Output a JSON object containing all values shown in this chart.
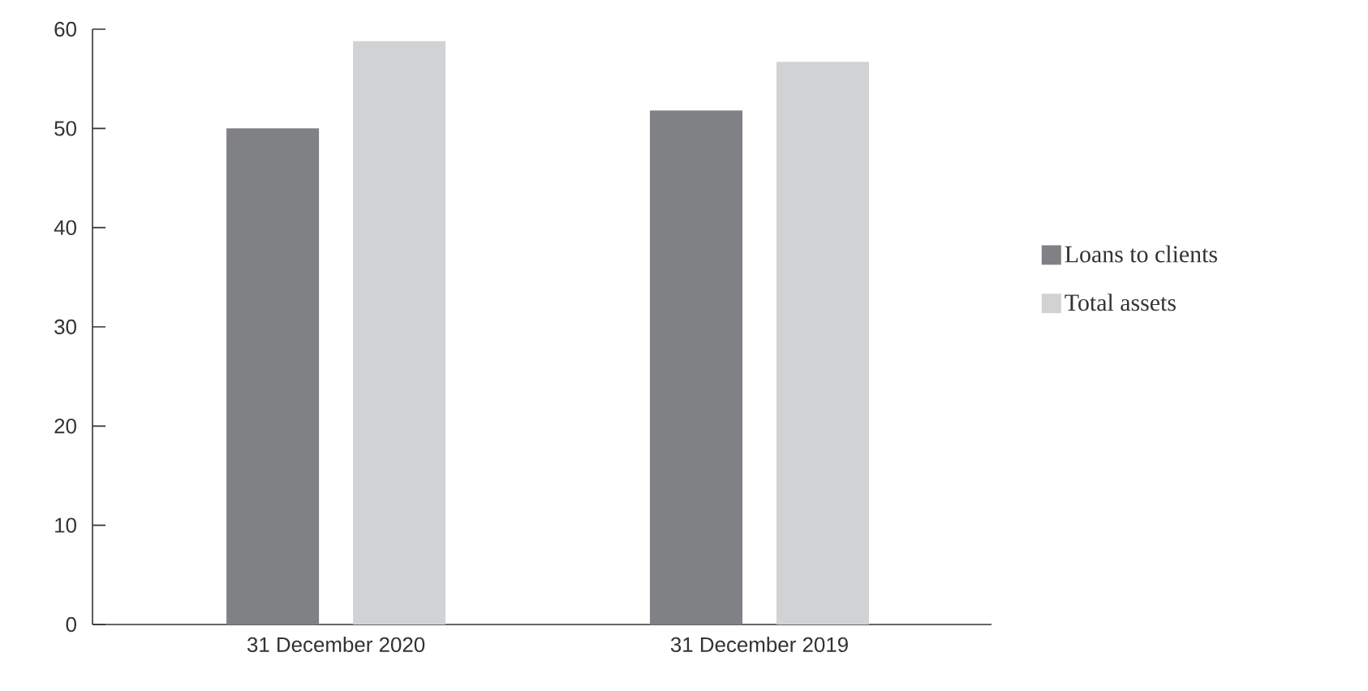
{
  "chart_data": {
    "type": "bar",
    "categories": [
      "31 December 2020",
      "31 December 2019"
    ],
    "series": [
      {
        "name": "Loans to clients",
        "color": "#808184",
        "values": [
          50,
          51.8
        ]
      },
      {
        "name": "Total assets",
        "color": "#d1d2d4",
        "values": [
          58.8,
          56.7
        ]
      }
    ],
    "ylim": [
      0,
      60
    ],
    "yticks": [
      0,
      10,
      20,
      30,
      40,
      50,
      60
    ],
    "legend": "right"
  }
}
